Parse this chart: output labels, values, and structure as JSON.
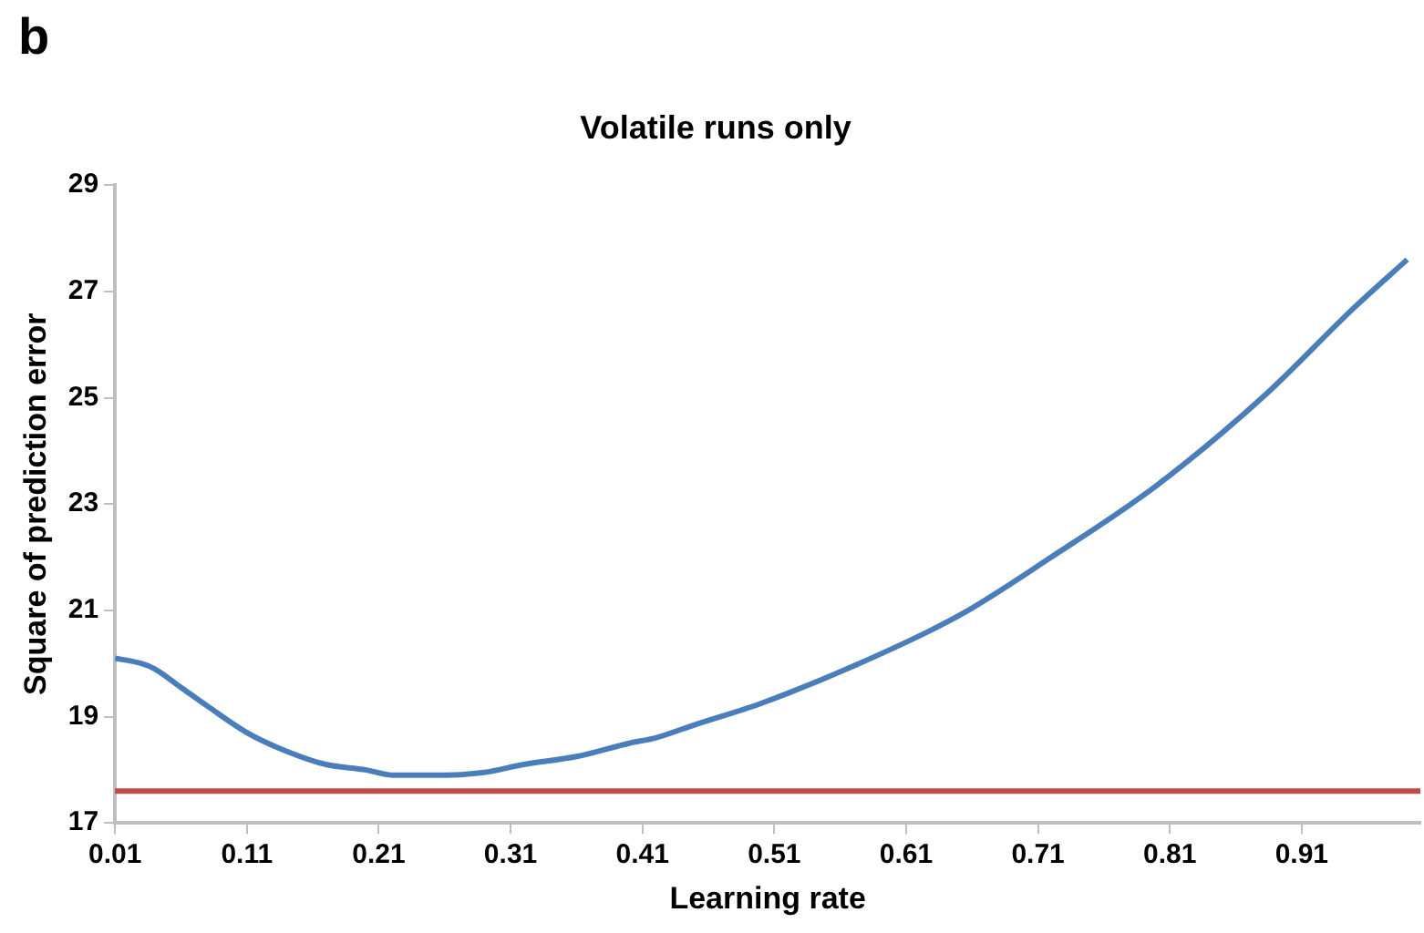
{
  "chart_data": {
    "type": "line",
    "title": "Volatile runs only",
    "xlabel": "Learning rate",
    "ylabel": "Square of prediction error",
    "annotations": [
      "b"
    ],
    "x": [
      0.01,
      0.03,
      0.04,
      0.06,
      0.08,
      0.11,
      0.14,
      0.17,
      0.2,
      0.22,
      0.26,
      0.29,
      0.32,
      0.36,
      0.4,
      0.42,
      0.45,
      0.5,
      0.57,
      0.65,
      0.72,
      0.8,
      0.88,
      0.95,
      0.99
    ],
    "series": [
      {
        "color": "#4a7ebb",
        "values": [
          20.1,
          20.0,
          19.9,
          19.55,
          19.2,
          18.7,
          18.35,
          18.1,
          18.0,
          17.9,
          17.9,
          17.95,
          18.1,
          18.25,
          18.5,
          18.6,
          18.85,
          19.25,
          19.95,
          20.9,
          22.0,
          23.35,
          25.0,
          26.7,
          27.6
        ]
      }
    ],
    "xlim": [
      0.01,
      1.0
    ],
    "xticks": [
      0.01,
      0.11,
      0.21,
      0.31,
      0.41,
      0.51,
      0.61,
      0.71,
      0.81,
      0.91
    ],
    "ylim": [
      17,
      29
    ],
    "yticks": [
      17,
      19,
      21,
      23,
      25,
      27,
      29
    ],
    "ref_lines": [
      {
        "axis": "y",
        "value": 17.6,
        "color": "#be4b48"
      }
    ],
    "grid": false,
    "legend": false,
    "marker": "none",
    "line_style": "solid"
  }
}
